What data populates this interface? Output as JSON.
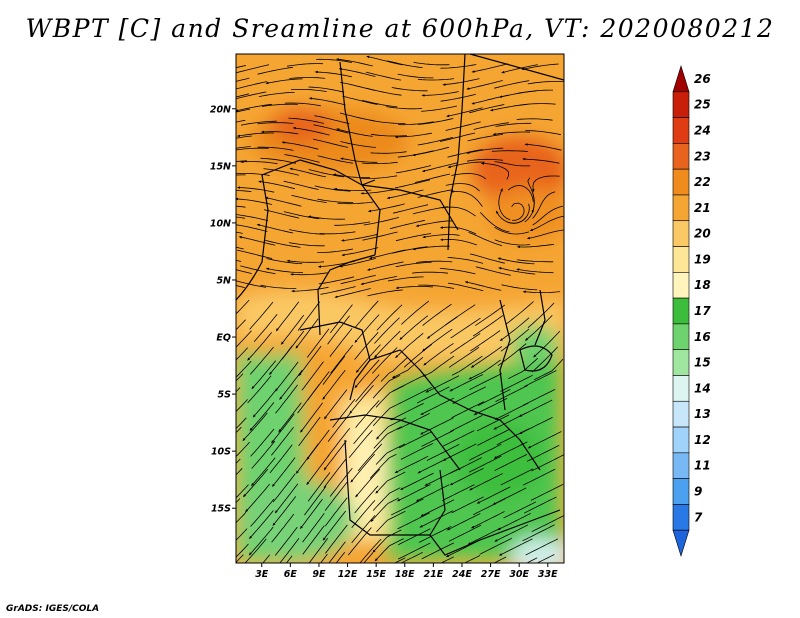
{
  "title": "WBPT [C] and Sreamline at 600hPa, VT: 2020080212",
  "credit": "GrADS: IGES/COLA",
  "map": {
    "lat_ticks": [
      {
        "label": "20N",
        "lat": 20
      },
      {
        "label": "15N",
        "lat": 15
      },
      {
        "label": "10N",
        "lat": 10
      },
      {
        "label": "5N",
        "lat": 5
      },
      {
        "label": "EQ",
        "lat": 0
      },
      {
        "label": "5S",
        "lat": -5
      },
      {
        "label": "10S",
        "lat": -10
      },
      {
        "label": "15S",
        "lat": -15
      }
    ],
    "lon_ticks": [
      {
        "label": "3E",
        "lon": 3
      },
      {
        "label": "6E",
        "lon": 6
      },
      {
        "label": "9E",
        "lon": 9
      },
      {
        "label": "12E",
        "lon": 12
      },
      {
        "label": "15E",
        "lon": 15
      },
      {
        "label": "18E",
        "lon": 18
      },
      {
        "label": "21E",
        "lon": 21
      },
      {
        "label": "24E",
        "lon": 24
      },
      {
        "label": "27E",
        "lon": 27
      },
      {
        "label": "30E",
        "lon": 30
      },
      {
        "label": "33E",
        "lon": 33
      }
    ],
    "lon_range": [
      0.3,
      34.7
    ],
    "lat_range": [
      -19.8,
      24.8
    ]
  },
  "colorbar": {
    "levels": [
      "26",
      "25",
      "24",
      "23",
      "22",
      "21",
      "20",
      "19",
      "18",
      "17",
      "16",
      "15",
      "14",
      "13",
      "12",
      "11",
      "9",
      "7"
    ],
    "colors": [
      "#a00000",
      "#c81e0a",
      "#e03c14",
      "#e8641e",
      "#f08c1e",
      "#f5a532",
      "#fac864",
      "#fde696",
      "#fff5bc",
      "#3cbe3c",
      "#6ed26e",
      "#a0e6a0",
      "#dcf5f0",
      "#c8e6fa",
      "#a0d2fa",
      "#78b9f5",
      "#4ba0f0",
      "#2878e6",
      "#1e64dc"
    ]
  },
  "chart_data": {
    "type": "heatmap",
    "title": "WBPT [C] and Sreamline at 600hPa, VT: 2020080212",
    "variable": "Wet-bulb potential temperature (C) with 600hPa streamlines",
    "valid_time": "2020080212",
    "x_axis": "Longitude (E)",
    "y_axis": "Latitude",
    "xlim": [
      0.3,
      34.7
    ],
    "ylim": [
      -19.8,
      24.8
    ],
    "regions": [
      {
        "area": "north of equator (5N-25N)",
        "wbpt_c": "20-22"
      },
      {
        "area": "Sahel maxima near 7E-12E, 17N-20N",
        "wbpt_c": "22-23"
      },
      {
        "area": "maximum near 28E-33E, 14N-18N",
        "wbpt_c": "22-23"
      },
      {
        "area": "equator to 5N",
        "wbpt_c": "19-21"
      },
      {
        "area": "south of equator, west and east",
        "wbpt_c": "16-18"
      },
      {
        "area": "corridor 14E-18E, 5S-17S",
        "wbpt_c": "18-19"
      },
      {
        "area": "far southeast corner",
        "wbpt_c": "14-15"
      }
    ]
  }
}
